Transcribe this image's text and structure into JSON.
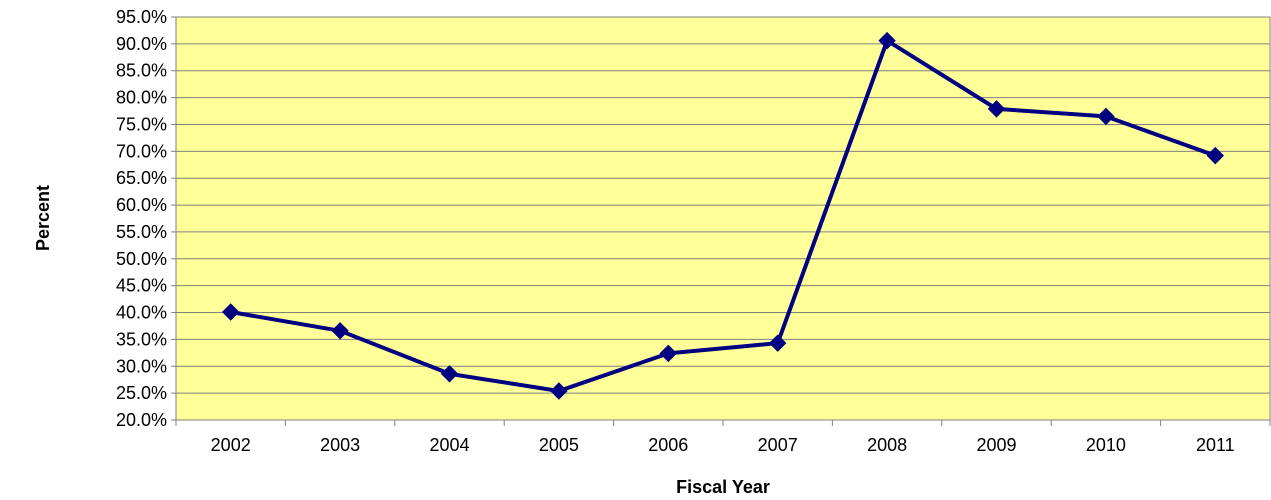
{
  "chart_data": {
    "type": "line",
    "title": "",
    "xlabel": "Fiscal Year",
    "ylabel": "Percent",
    "categories": [
      "2002",
      "2003",
      "2004",
      "2005",
      "2006",
      "2007",
      "2008",
      "2009",
      "2010",
      "2011"
    ],
    "series": [
      {
        "values": [
          40.1,
          36.6,
          28.6,
          25.4,
          32.4,
          34.3,
          90.6,
          77.9,
          76.5,
          69.2
        ],
        "color": "#000080"
      }
    ],
    "ylim": [
      20,
      95
    ],
    "ytick_step": 5,
    "ytick_labels": [
      "20.0%",
      "25.0%",
      "30.0%",
      "35.0%",
      "40.0%",
      "45.0%",
      "50.0%",
      "55.0%",
      "60.0%",
      "65.0%",
      "70.0%",
      "75.0%",
      "80.0%",
      "85.0%",
      "90.0%",
      "95.0%"
    ],
    "grid": true,
    "plot_background": "#FFFF99",
    "legend": "none"
  }
}
